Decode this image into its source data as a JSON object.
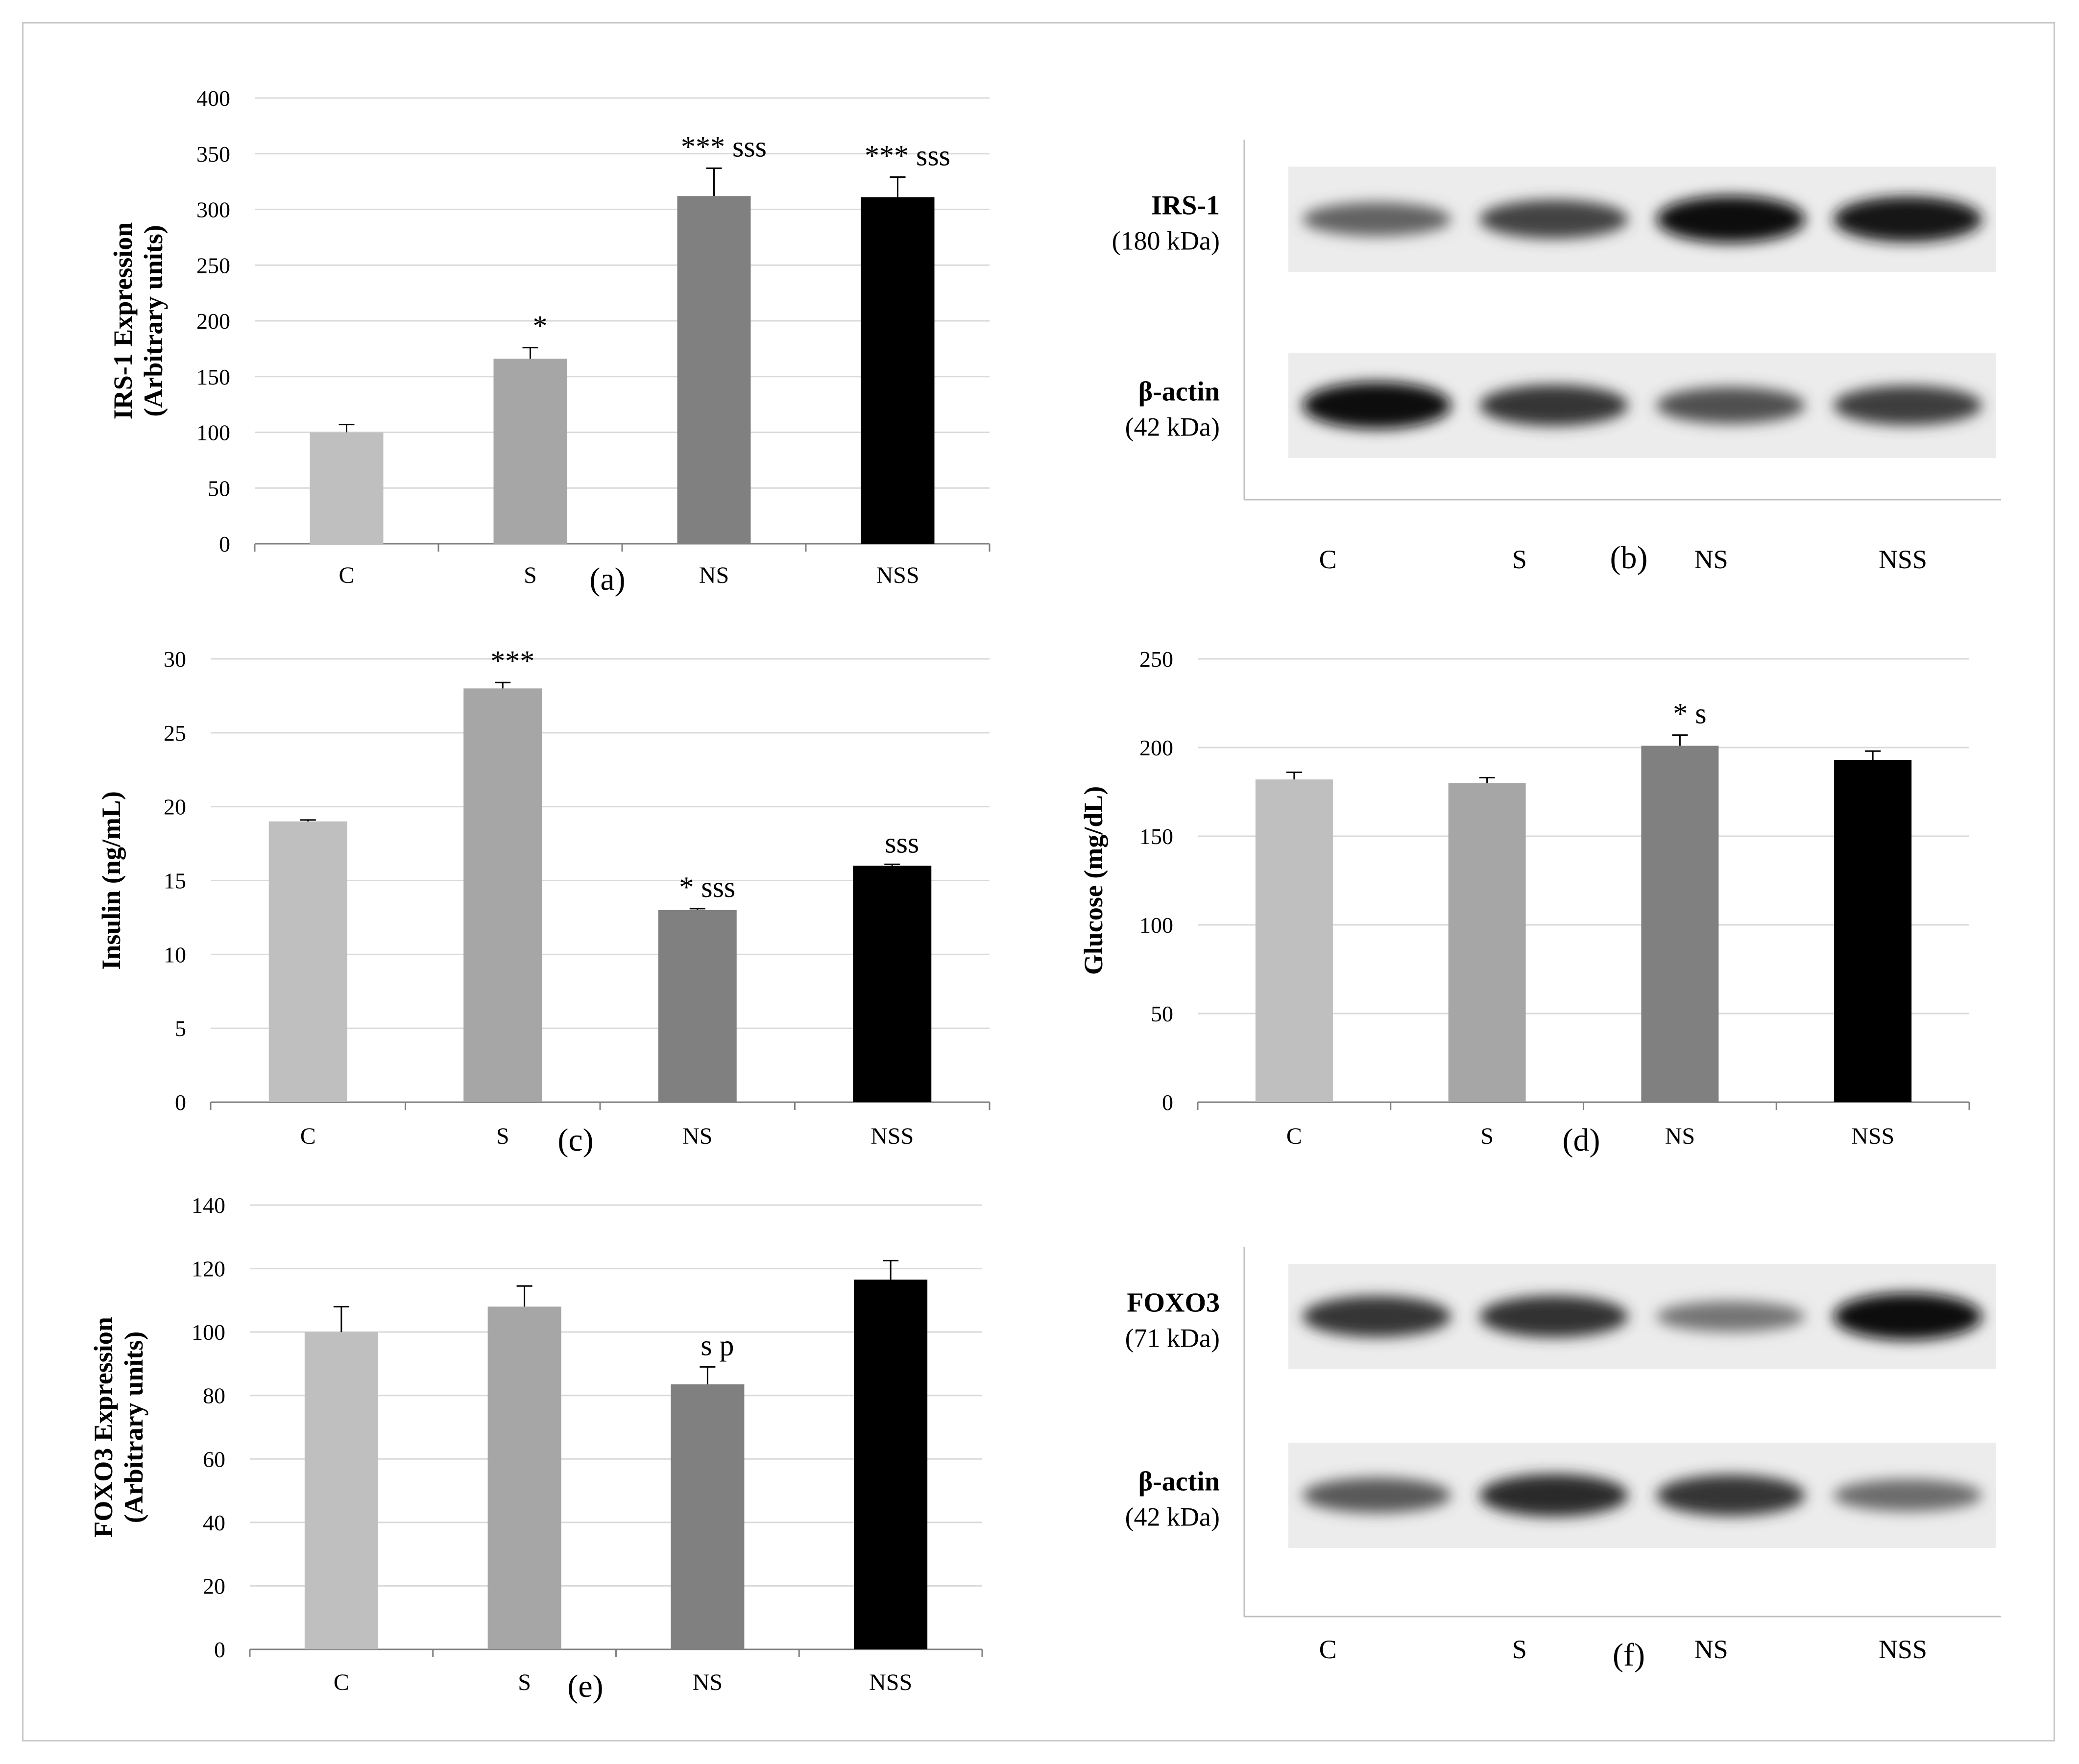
{
  "panel_labels": [
    "(a)",
    "(b)",
    "(c)",
    "(d)",
    "(e)",
    "(f)"
  ],
  "colors": {
    "C": "#bfbfbf",
    "S": "#a6a6a6",
    "NS": "#808080",
    "NSS": "#000000"
  },
  "chart_data": [
    {
      "id": "a",
      "type": "bar",
      "panel": "(a)",
      "ylabel": [
        "IRS-1 Expression",
        "(Arbitrary  units)"
      ],
      "xlabel": "",
      "categories": [
        "C",
        "S",
        "NS",
        "NSS"
      ],
      "values": [
        100,
        166,
        312,
        311
      ],
      "errors": [
        7,
        10,
        25,
        18
      ],
      "annotations": [
        "",
        "*",
        "*** sss",
        "*** sss"
      ],
      "ylim": [
        0,
        400
      ],
      "yticks": [
        0,
        50,
        100,
        150,
        200,
        250,
        300,
        350,
        400
      ],
      "grid": true
    },
    {
      "id": "c",
      "type": "bar",
      "panel": "(c)",
      "ylabel": [
        "Insulin (ng/mL)"
      ],
      "xlabel": "",
      "categories": [
        "C",
        "S",
        "NS",
        "NSS"
      ],
      "values": [
        19,
        28,
        13,
        16
      ],
      "errors": [
        0.1,
        0.4,
        0.1,
        0.1
      ],
      "annotations": [
        "",
        "***",
        "* sss",
        "sss"
      ],
      "ylim": [
        0,
        30
      ],
      "yticks": [
        0,
        5,
        10,
        15,
        20,
        25,
        30
      ],
      "grid": true
    },
    {
      "id": "d",
      "type": "bar",
      "panel": "(d)",
      "ylabel": [
        "Glucose (mg/dL)"
      ],
      "xlabel": "",
      "categories": [
        "C",
        "S",
        "NS",
        "NSS"
      ],
      "values": [
        182,
        180,
        201,
        193
      ],
      "errors": [
        4,
        3,
        6,
        5
      ],
      "annotations": [
        "",
        "",
        "* s",
        ""
      ],
      "ylim": [
        0,
        250
      ],
      "yticks": [
        0,
        50,
        100,
        150,
        200,
        250
      ],
      "grid": true
    },
    {
      "id": "e",
      "type": "bar",
      "panel": "(e)",
      "ylabel": [
        "FOXO3 Expression",
        "(Arbitrary  units)"
      ],
      "xlabel": "",
      "categories": [
        "C",
        "S",
        "NS",
        "NSS"
      ],
      "values": [
        100,
        108,
        83.5,
        116.5
      ],
      "errors": [
        8,
        6.5,
        5.5,
        6
      ],
      "annotations": [
        "",
        "",
        "s p",
        ""
      ],
      "ylim": [
        0,
        140
      ],
      "yticks": [
        0,
        20,
        40,
        60,
        80,
        100,
        120,
        140
      ],
      "grid": true
    }
  ],
  "blots": [
    {
      "id": "b",
      "panel": "(b)",
      "lanes": [
        "C",
        "S",
        "NS",
        "NSS"
      ],
      "rows": [
        {
          "title": "IRS-1",
          "kda": "(180 kDa)",
          "intensity": [
            0.55,
            0.72,
            1.0,
            0.95
          ]
        },
        {
          "title": "β-actin",
          "kda": "(42 kDa)",
          "intensity": [
            1.0,
            0.8,
            0.65,
            0.75
          ]
        }
      ]
    },
    {
      "id": "f",
      "panel": "(f)",
      "lanes": [
        "C",
        "S",
        "NS",
        "NSS"
      ],
      "rows": [
        {
          "title": "FOXO3",
          "kda": "(71 kDa)",
          "intensity": [
            0.8,
            0.82,
            0.45,
            1.0
          ]
        },
        {
          "title": "β-actin",
          "kda": "(42 kDa)",
          "intensity": [
            0.6,
            0.85,
            0.8,
            0.5
          ]
        }
      ]
    }
  ]
}
